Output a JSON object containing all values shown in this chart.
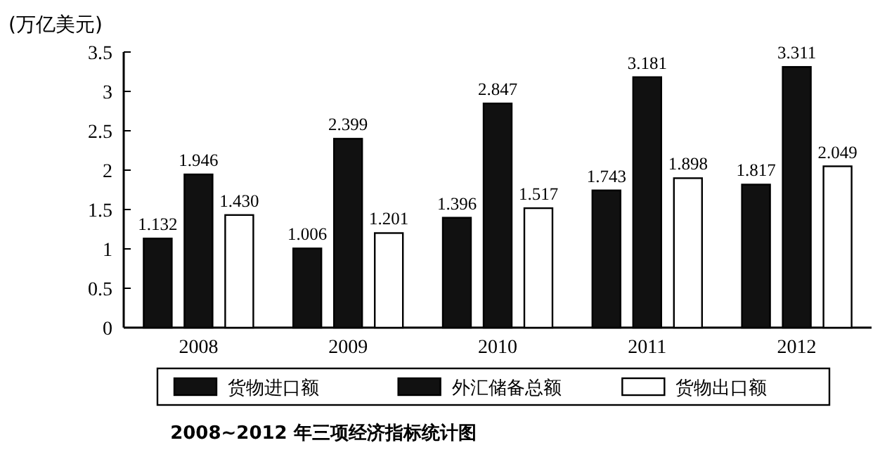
{
  "chart_data": {
    "type": "bar",
    "title": "2008~2012 年三项经济指标统计图",
    "ylabel": "(万亿美元)",
    "categories": [
      "2008",
      "2009",
      "2010",
      "2011",
      "2012"
    ],
    "series": [
      {
        "name": "货物进口额",
        "color": "#111111",
        "values": [
          1.132,
          1.006,
          1.396,
          1.743,
          1.817
        ]
      },
      {
        "name": "外汇储备总额",
        "color": "#111111",
        "values": [
          1.946,
          2.399,
          2.847,
          3.181,
          3.311
        ]
      },
      {
        "name": "货物出口额",
        "color": "#ffffff",
        "values": [
          1.43,
          1.201,
          1.517,
          1.898,
          2.049
        ]
      }
    ],
    "ylim": [
      0,
      3.5
    ],
    "yticks": [
      0,
      0.5,
      1,
      1.5,
      2,
      2.5,
      3,
      3.5
    ],
    "value_labels": [
      [
        "1.132",
        "1.006",
        "1.396",
        "1.743",
        "1.817"
      ],
      [
        "1.946",
        "2.399",
        "2.847",
        "3.181",
        "3.311"
      ],
      [
        "1.430",
        "1.201",
        "1.517",
        "1.898",
        "2.049"
      ]
    ],
    "legend": "bottom"
  }
}
